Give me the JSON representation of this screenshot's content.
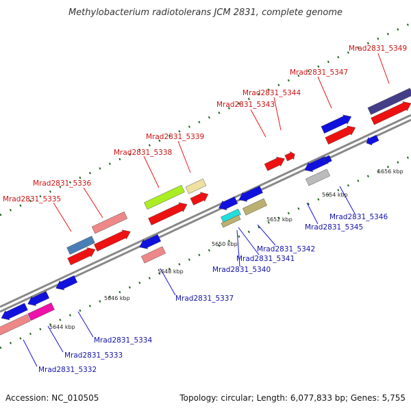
{
  "title": "Methylobacterium radiotolerans JCM 2831, complete genome",
  "footer": {
    "accession": "Accession: NC_010505",
    "topology": "Topology: circular; Length: 6,077,833 bp; Genes: 5,755"
  },
  "colors": {
    "red": "#ee1111",
    "blue": "#1111dd",
    "pink": "#ee8888",
    "steel": "#4a7fb5",
    "lime": "#aaee22",
    "khaki": "#bbb070",
    "beige": "#eee0a0",
    "cyan": "#22dddd",
    "magenta": "#ee11aa",
    "gray": "#bbbbbb",
    "purple": "#443d88",
    "dots": "#226622",
    "axis": "#888888"
  },
  "ticks": [
    {
      "label": "5644 kbp"
    },
    {
      "label": "5646 kbp"
    },
    {
      "label": "5648 kbp"
    },
    {
      "label": "5650 kbp"
    },
    {
      "label": "5652 kbp"
    },
    {
      "label": "5654 kbp"
    },
    {
      "label": "5656 kbp"
    }
  ],
  "genes_top": [
    {
      "name": "Mrad2831_5335"
    },
    {
      "name": "Mrad2831_5336"
    },
    {
      "name": "Mrad2831_5338"
    },
    {
      "name": "Mrad2831_5339"
    },
    {
      "name": "Mrad2831_5343"
    },
    {
      "name": "Mrad2831_5344"
    },
    {
      "name": "Mrad2831_5347"
    },
    {
      "name": "Mrad2831_5349"
    }
  ],
  "genes_bottom": [
    {
      "name": "Mrad2831_5332"
    },
    {
      "name": "Mrad2831_5333"
    },
    {
      "name": "Mrad2831_5334"
    },
    {
      "name": "Mrad2831_5337"
    },
    {
      "name": "Mrad2831_5340"
    },
    {
      "name": "Mrad2831_5341"
    },
    {
      "name": "Mrad2831_5342"
    },
    {
      "name": "Mrad2831_5345"
    },
    {
      "name": "Mrad2831_5346"
    }
  ]
}
